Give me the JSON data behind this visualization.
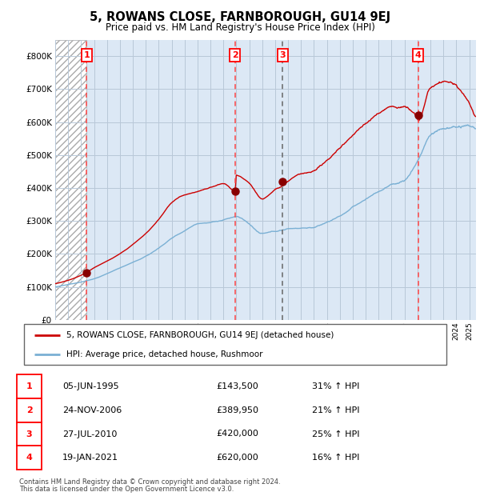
{
  "title": "5, ROWANS CLOSE, FARNBOROUGH, GU14 9EJ",
  "subtitle": "Price paid vs. HM Land Registry's House Price Index (HPI)",
  "ylim": [
    0,
    850000
  ],
  "yticks": [
    0,
    100000,
    200000,
    300000,
    400000,
    500000,
    600000,
    700000,
    800000
  ],
  "xlim_start": 1993.0,
  "xlim_end": 2025.5,
  "hatch_end": 1995.43,
  "sales": [
    {
      "label": 1,
      "date_str": "05-JUN-1995",
      "year": 1995.43,
      "price": 143500,
      "pct": "31%",
      "dir": "↑",
      "vline_style": "red_dash"
    },
    {
      "label": 2,
      "date_str": "24-NOV-2006",
      "year": 2006.9,
      "price": 389950,
      "pct": "21%",
      "dir": "↑",
      "vline_style": "red_dash"
    },
    {
      "label": 3,
      "date_str": "27-JUL-2010",
      "year": 2010.57,
      "price": 420000,
      "pct": "25%",
      "dir": "↑",
      "vline_style": "grey_dash"
    },
    {
      "label": 4,
      "date_str": "19-JAN-2021",
      "year": 2021.05,
      "price": 620000,
      "pct": "16%",
      "dir": "↑",
      "vline_style": "red_dash"
    }
  ],
  "legend_line1": "5, ROWANS CLOSE, FARNBOROUGH, GU14 9EJ (detached house)",
  "legend_line2": "HPI: Average price, detached house, Rushmoor",
  "footer1": "Contains HM Land Registry data © Crown copyright and database right 2024.",
  "footer2": "This data is licensed under the Open Government Licence v3.0.",
  "red_line_color": "#cc0000",
  "blue_line_color": "#7ab0d4",
  "hatch_color": "#aaaaaa",
  "bg_plot": "#dce8f5",
  "grid_color": "#b8c8d8",
  "sale_dot_color": "#880000",
  "red_dash_color": "#ff4444",
  "grey_dash_color": "#666666"
}
